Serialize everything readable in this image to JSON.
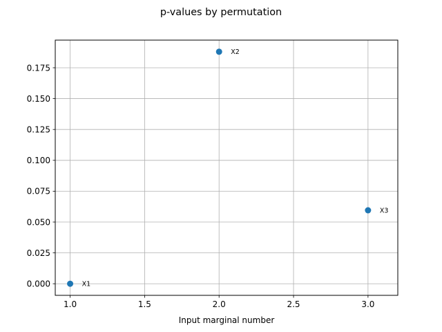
{
  "chart_data": {
    "type": "scatter",
    "title": "p-values by permutation",
    "xlabel": "Input marginal number",
    "ylabel": "",
    "xlim": [
      0.9,
      3.2
    ],
    "ylim": [
      -0.0094,
      0.1974
    ],
    "grid": true,
    "x_ticks": [
      {
        "value": 1.0,
        "label": "1.0"
      },
      {
        "value": 1.5,
        "label": "1.5"
      },
      {
        "value": 2.0,
        "label": "2.0"
      },
      {
        "value": 2.5,
        "label": "2.5"
      },
      {
        "value": 3.0,
        "label": "3.0"
      }
    ],
    "y_ticks": [
      {
        "value": 0.0,
        "label": "0.000"
      },
      {
        "value": 0.025,
        "label": "0.025"
      },
      {
        "value": 0.05,
        "label": "0.050"
      },
      {
        "value": 0.075,
        "label": "0.075"
      },
      {
        "value": 0.1,
        "label": "0.100"
      },
      {
        "value": 0.125,
        "label": "0.125"
      },
      {
        "value": 0.15,
        "label": "0.150"
      },
      {
        "value": 0.175,
        "label": "0.175"
      }
    ],
    "points": [
      {
        "x": 1,
        "y": 0.0,
        "label": "X1"
      },
      {
        "x": 2,
        "y": 0.188,
        "label": "X2"
      },
      {
        "x": 3,
        "y": 0.0595,
        "label": "X3"
      }
    ],
    "marker_color": "#1f77b4",
    "grid_color": "#b0b0b0"
  }
}
